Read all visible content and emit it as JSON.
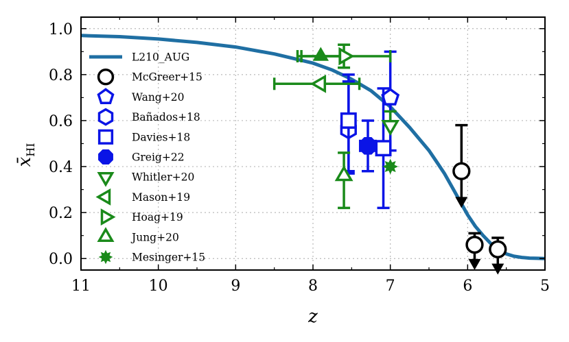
{
  "chart_data": {
    "type": "scatter",
    "xlabel": "z",
    "ylabel_main": "x̄",
    "ylabel_sub": "HI",
    "xlim": [
      11,
      5
    ],
    "ylim": [
      -0.05,
      1.05
    ],
    "x_ticks": [
      "11",
      "10",
      "9",
      "8",
      "7",
      "6",
      "5"
    ],
    "y_ticks": [
      "0.0",
      "0.2",
      "0.4",
      "0.6",
      "0.8",
      "1.0"
    ],
    "grid": true,
    "legend_position": "left",
    "line_series": {
      "name": "L210_AUG",
      "color": "#1f6fa3",
      "x": [
        11,
        10.5,
        10,
        9.5,
        9,
        8.5,
        8,
        7.75,
        7.5,
        7.25,
        7,
        6.75,
        6.5,
        6.4,
        6.3,
        6.2,
        6.1,
        6.0,
        5.9,
        5.8,
        5.7,
        5.6,
        5.5,
        5.4,
        5.3,
        5.2,
        5.1,
        5.0
      ],
      "y": [
        0.97,
        0.965,
        0.955,
        0.94,
        0.92,
        0.89,
        0.85,
        0.82,
        0.78,
        0.73,
        0.66,
        0.57,
        0.47,
        0.42,
        0.37,
        0.31,
        0.25,
        0.19,
        0.14,
        0.1,
        0.065,
        0.04,
        0.02,
        0.01,
        0.005,
        0.002,
        0.001,
        0.0
      ]
    },
    "points": [
      {
        "name": "McGreer+15",
        "color": "#000000",
        "marker": "circle-open",
        "x": 6.08,
        "y": 0.38,
        "yerr_up": 0.2,
        "upper_limit": true,
        "arrow_to": 0.25
      },
      {
        "name": "McGreer+15",
        "color": "#000000",
        "marker": "circle-open",
        "x": 5.91,
        "y": 0.06,
        "yerr_up": 0.05,
        "upper_limit": true,
        "arrow_to": -0.02
      },
      {
        "name": "McGreer+15",
        "color": "#000000",
        "marker": "circle-open",
        "x": 5.61,
        "y": 0.04,
        "yerr_up": 0.05,
        "upper_limit": true,
        "arrow_to": -0.04
      },
      {
        "name": "Wang+20",
        "color": "#0a14e6",
        "marker": "pentagon",
        "x": 7.0,
        "y": 0.7,
        "yerr_up": 0.2,
        "yerr_down": 0.23
      },
      {
        "name": "Bañados+18",
        "color": "#0a14e6",
        "marker": "hexagon",
        "x": 7.54,
        "y": 0.56,
        "yerr_up": 0.21,
        "yerr_down": 0.18
      },
      {
        "name": "Davies+18",
        "color": "#0a14e6",
        "marker": "square-open",
        "x": 7.54,
        "y": 0.6,
        "yerr_up": 0.2,
        "yerr_down": 0.23
      },
      {
        "name": "Davies+18",
        "color": "#0a14e6",
        "marker": "square-open",
        "x": 7.09,
        "y": 0.48,
        "yerr_up": 0.26,
        "yerr_down": 0.26
      },
      {
        "name": "Greig+22",
        "color": "#0a14e6",
        "marker": "octagon",
        "x": 7.29,
        "y": 0.49,
        "xerr": 0.1,
        "yerr_up": 0.11,
        "yerr_down": 0.11
      },
      {
        "name": "Whitler+20",
        "color": "#1a8a1a",
        "marker": "triangle-down-open",
        "x": 7.0,
        "y": 0.58,
        "yerr_up": 0.06,
        "yerr_down": 0.0
      },
      {
        "name": "Mason+19",
        "color": "#1a8a1a",
        "marker": "triangle-left-open",
        "x": 7.9,
        "y": 0.76,
        "xerr_left": 0.6,
        "xerr_right": 0.5
      },
      {
        "name": "Hoag+19",
        "color": "#1a8a1a",
        "marker": "triangle-right-open",
        "x": 7.6,
        "y": 0.88,
        "xerr_left": 0.6,
        "xerr_right": 0.6,
        "yerr_up": 0.05,
        "yerr_down": 0.05
      },
      {
        "name": "Jung+20",
        "color": "#1a8a1a",
        "marker": "triangle-up-open",
        "x": 7.6,
        "y": 0.36,
        "yerr_up": 0.1,
        "yerr_down": 0.14
      },
      {
        "name": "Jung+20",
        "color": "#1a8a1a",
        "marker": "triangle-up",
        "x": 7.9,
        "y": 0.88,
        "xerr_left": 0.25,
        "xerr_right": 0.25
      },
      {
        "name": "Mesinger+15",
        "color": "#1a8a1a",
        "marker": "star",
        "x": 7.0,
        "y": 0.4
      }
    ],
    "legend": [
      {
        "label": "L210_AUG",
        "color": "#1f6fa3",
        "marker": "line"
      },
      {
        "label": "McGreer+15",
        "color": "#000000",
        "marker": "circle-open"
      },
      {
        "label": "Wang+20",
        "color": "#0a14e6",
        "marker": "pentagon"
      },
      {
        "label": "Bañados+18",
        "color": "#0a14e6",
        "marker": "hexagon"
      },
      {
        "label": "Davies+18",
        "color": "#0a14e6",
        "marker": "square-open"
      },
      {
        "label": "Greig+22",
        "color": "#0a14e6",
        "marker": "octagon"
      },
      {
        "label": "Whitler+20",
        "color": "#1a8a1a",
        "marker": "triangle-down-open"
      },
      {
        "label": "Mason+19",
        "color": "#1a8a1a",
        "marker": "triangle-left-open"
      },
      {
        "label": "Hoag+19",
        "color": "#1a8a1a",
        "marker": "triangle-right-open"
      },
      {
        "label": "Jung+20",
        "color": "#1a8a1a",
        "marker": "triangle-up-open"
      },
      {
        "label": "Mesinger+15",
        "color": "#1a8a1a",
        "marker": "star"
      }
    ]
  }
}
